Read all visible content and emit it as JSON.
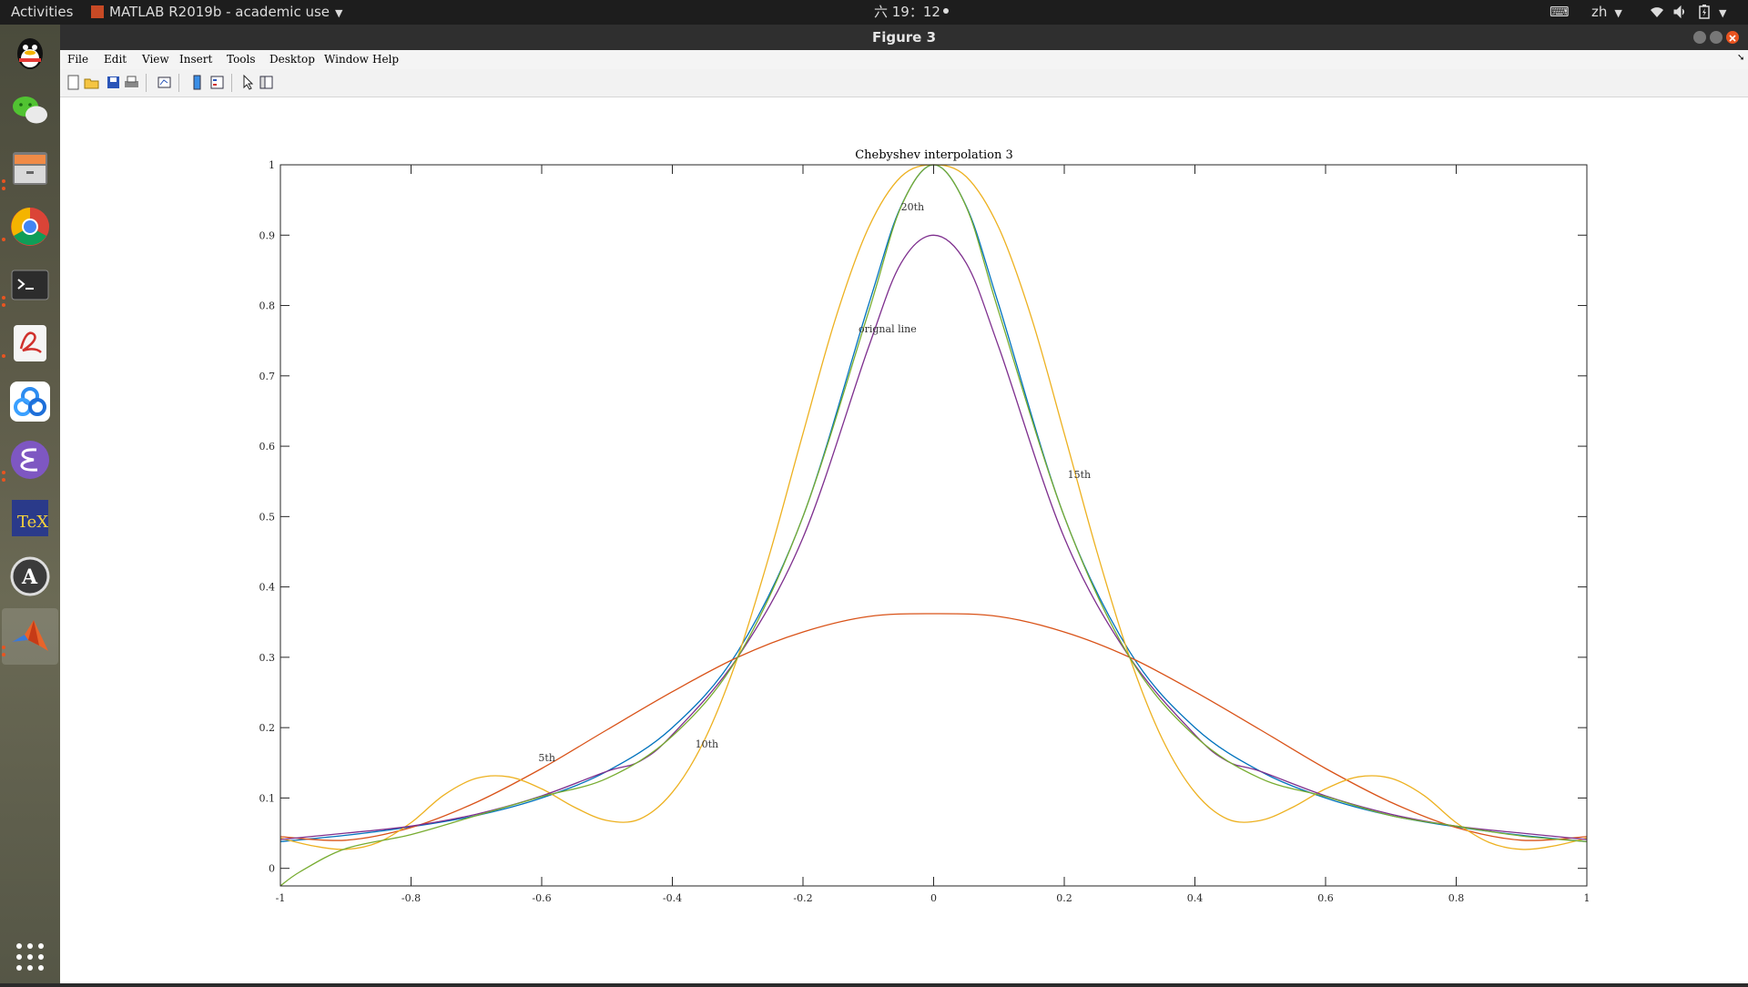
{
  "topbar": {
    "activities": "Activities",
    "app_title": "MATLAB R2019b - academic use",
    "clock": "六 19：12",
    "input_method": "zh"
  },
  "window": {
    "title": "Figure 3",
    "menu": [
      "File",
      "Edit",
      "View",
      "Insert",
      "Tools",
      "Desktop",
      "Window",
      "Help"
    ]
  },
  "dock": {
    "icons": [
      "qq-icon",
      "wechat-icon",
      "files-icon",
      "chrome-icon",
      "terminal-icon",
      "pdf-reader-icon",
      "baidu-netdisk-icon",
      "emacs-icon",
      "texstudio-icon",
      "software-updater-icon",
      "matlab-icon",
      "app-grid-icon"
    ]
  },
  "toolbar": {
    "icons": [
      "new-figure-icon",
      "open-file-icon",
      "save-icon",
      "print-icon",
      "link-plot-icon",
      "colorbar-icon",
      "legend-icon",
      "pointer-icon",
      "property-editor-icon"
    ]
  },
  "chart_data": {
    "type": "line",
    "title": "Chebyshev interpolation 3",
    "xlim": [
      -1,
      1
    ],
    "ylim": [
      -0.025,
      1
    ],
    "xticks": [
      -1,
      -0.8,
      -0.6,
      -0.4,
      -0.2,
      0,
      0.2,
      0.4,
      0.6,
      0.8,
      1
    ],
    "xtick_labels": [
      "-1",
      "-0.8",
      "-0.6",
      "-0.4",
      "-0.2",
      "0",
      "0.2",
      "0.4",
      "0.6",
      "0.8",
      "1"
    ],
    "yticks": [
      0,
      0.1,
      0.2,
      0.3,
      0.4,
      0.5,
      0.6,
      0.7,
      0.8,
      0.9,
      1
    ],
    "ytick_labels": [
      "0",
      "0.1",
      "0.2",
      "0.3",
      "0.4",
      "0.5",
      "0.6",
      "0.7",
      "0.8",
      "0.9",
      "1"
    ],
    "grid": false,
    "series": [
      {
        "color": "#0072bd",
        "x": [
          -1,
          -0.9,
          -0.8,
          -0.7,
          -0.6,
          -0.5,
          -0.4,
          -0.3,
          -0.2,
          -0.1,
          -0.05,
          0,
          0.05,
          0.1,
          0.2,
          0.3,
          0.4,
          0.5,
          0.6,
          0.7,
          0.8,
          0.9,
          1
        ],
        "y": [
          0.038,
          0.047,
          0.059,
          0.075,
          0.1,
          0.138,
          0.2,
          0.308,
          0.5,
          0.8,
          0.941,
          1,
          0.941,
          0.8,
          0.5,
          0.308,
          0.2,
          0.138,
          0.1,
          0.075,
          0.059,
          0.047,
          0.038
        ]
      },
      {
        "color": "#d95319",
        "x": [
          -1,
          -0.9,
          -0.8,
          -0.7,
          -0.6,
          -0.5,
          -0.4,
          -0.3,
          -0.2,
          -0.1,
          0,
          0.1,
          0.2,
          0.3,
          0.4,
          0.5,
          0.6,
          0.7,
          0.8,
          0.9,
          1
        ],
        "y": [
          0.045,
          0.04,
          0.058,
          0.094,
          0.142,
          0.197,
          0.251,
          0.3,
          0.336,
          0.358,
          0.362,
          0.358,
          0.336,
          0.3,
          0.251,
          0.197,
          0.142,
          0.094,
          0.058,
          0.04,
          0.045
        ]
      },
      {
        "color": "#edb120",
        "x": [
          -1,
          -0.95,
          -0.9,
          -0.85,
          -0.8,
          -0.75,
          -0.7,
          -0.65,
          -0.6,
          -0.55,
          -0.5,
          -0.45,
          -0.4,
          -0.35,
          -0.3,
          -0.25,
          -0.2,
          -0.15,
          -0.1,
          -0.05,
          0,
          0.05,
          0.1,
          0.15,
          0.2,
          0.25,
          0.3,
          0.35,
          0.4,
          0.45,
          0.5,
          0.55,
          0.6,
          0.65,
          0.7,
          0.75,
          0.8,
          0.85,
          0.9,
          0.95,
          1
        ],
        "y": [
          0.043,
          0.032,
          0.027,
          0.037,
          0.065,
          0.104,
          0.128,
          0.13,
          0.113,
          0.087,
          0.068,
          0.07,
          0.108,
          0.184,
          0.3,
          0.45,
          0.618,
          0.782,
          0.91,
          0.983,
          1,
          0.983,
          0.91,
          0.782,
          0.618,
          0.45,
          0.3,
          0.184,
          0.108,
          0.07,
          0.068,
          0.087,
          0.113,
          0.13,
          0.128,
          0.104,
          0.065,
          0.037,
          0.027,
          0.032,
          0.043
        ]
      },
      {
        "color": "#7e2f8e",
        "x": [
          -1,
          -0.9,
          -0.8,
          -0.7,
          -0.6,
          -0.5,
          -0.45,
          -0.4,
          -0.3,
          -0.2,
          -0.1,
          -0.05,
          0,
          0.05,
          0.1,
          0.2,
          0.3,
          0.4,
          0.45,
          0.5,
          0.6,
          0.7,
          0.8,
          0.9,
          1
        ],
        "y": [
          0.041,
          0.05,
          0.06,
          0.077,
          0.103,
          0.138,
          0.152,
          0.19,
          0.3,
          0.47,
          0.74,
          0.86,
          0.9,
          0.86,
          0.74,
          0.47,
          0.3,
          0.19,
          0.152,
          0.138,
          0.103,
          0.077,
          0.06,
          0.05,
          0.041
        ]
      },
      {
        "color": "#77ac30",
        "x": [
          -1,
          -0.97,
          -0.9,
          -0.8,
          -0.7,
          -0.6,
          -0.5,
          -0.4,
          -0.3,
          -0.2,
          -0.1,
          -0.05,
          0,
          0.05,
          0.1,
          0.2,
          0.3,
          0.4,
          0.5,
          0.6,
          0.7,
          0.8,
          0.9,
          1
        ],
        "y": [
          -0.025,
          -0.005,
          0.028,
          0.048,
          0.075,
          0.102,
          0.128,
          0.188,
          0.3,
          0.5,
          0.79,
          0.94,
          1,
          0.94,
          0.79,
          0.5,
          0.3,
          0.188,
          0.128,
          0.102,
          0.075,
          0.06,
          0.046,
          0.038
        ]
      }
    ],
    "annotations": [
      {
        "text": "20th",
        "x": -0.05,
        "y": 0.935
      },
      {
        "text": "orignal line",
        "x": -0.115,
        "y": 0.762
      },
      {
        "text": "15th",
        "x": 0.205,
        "y": 0.555
      },
      {
        "text": "10th",
        "x": -0.365,
        "y": 0.172
      },
      {
        "text": "5th",
        "x": -0.605,
        "y": 0.152
      }
    ]
  }
}
